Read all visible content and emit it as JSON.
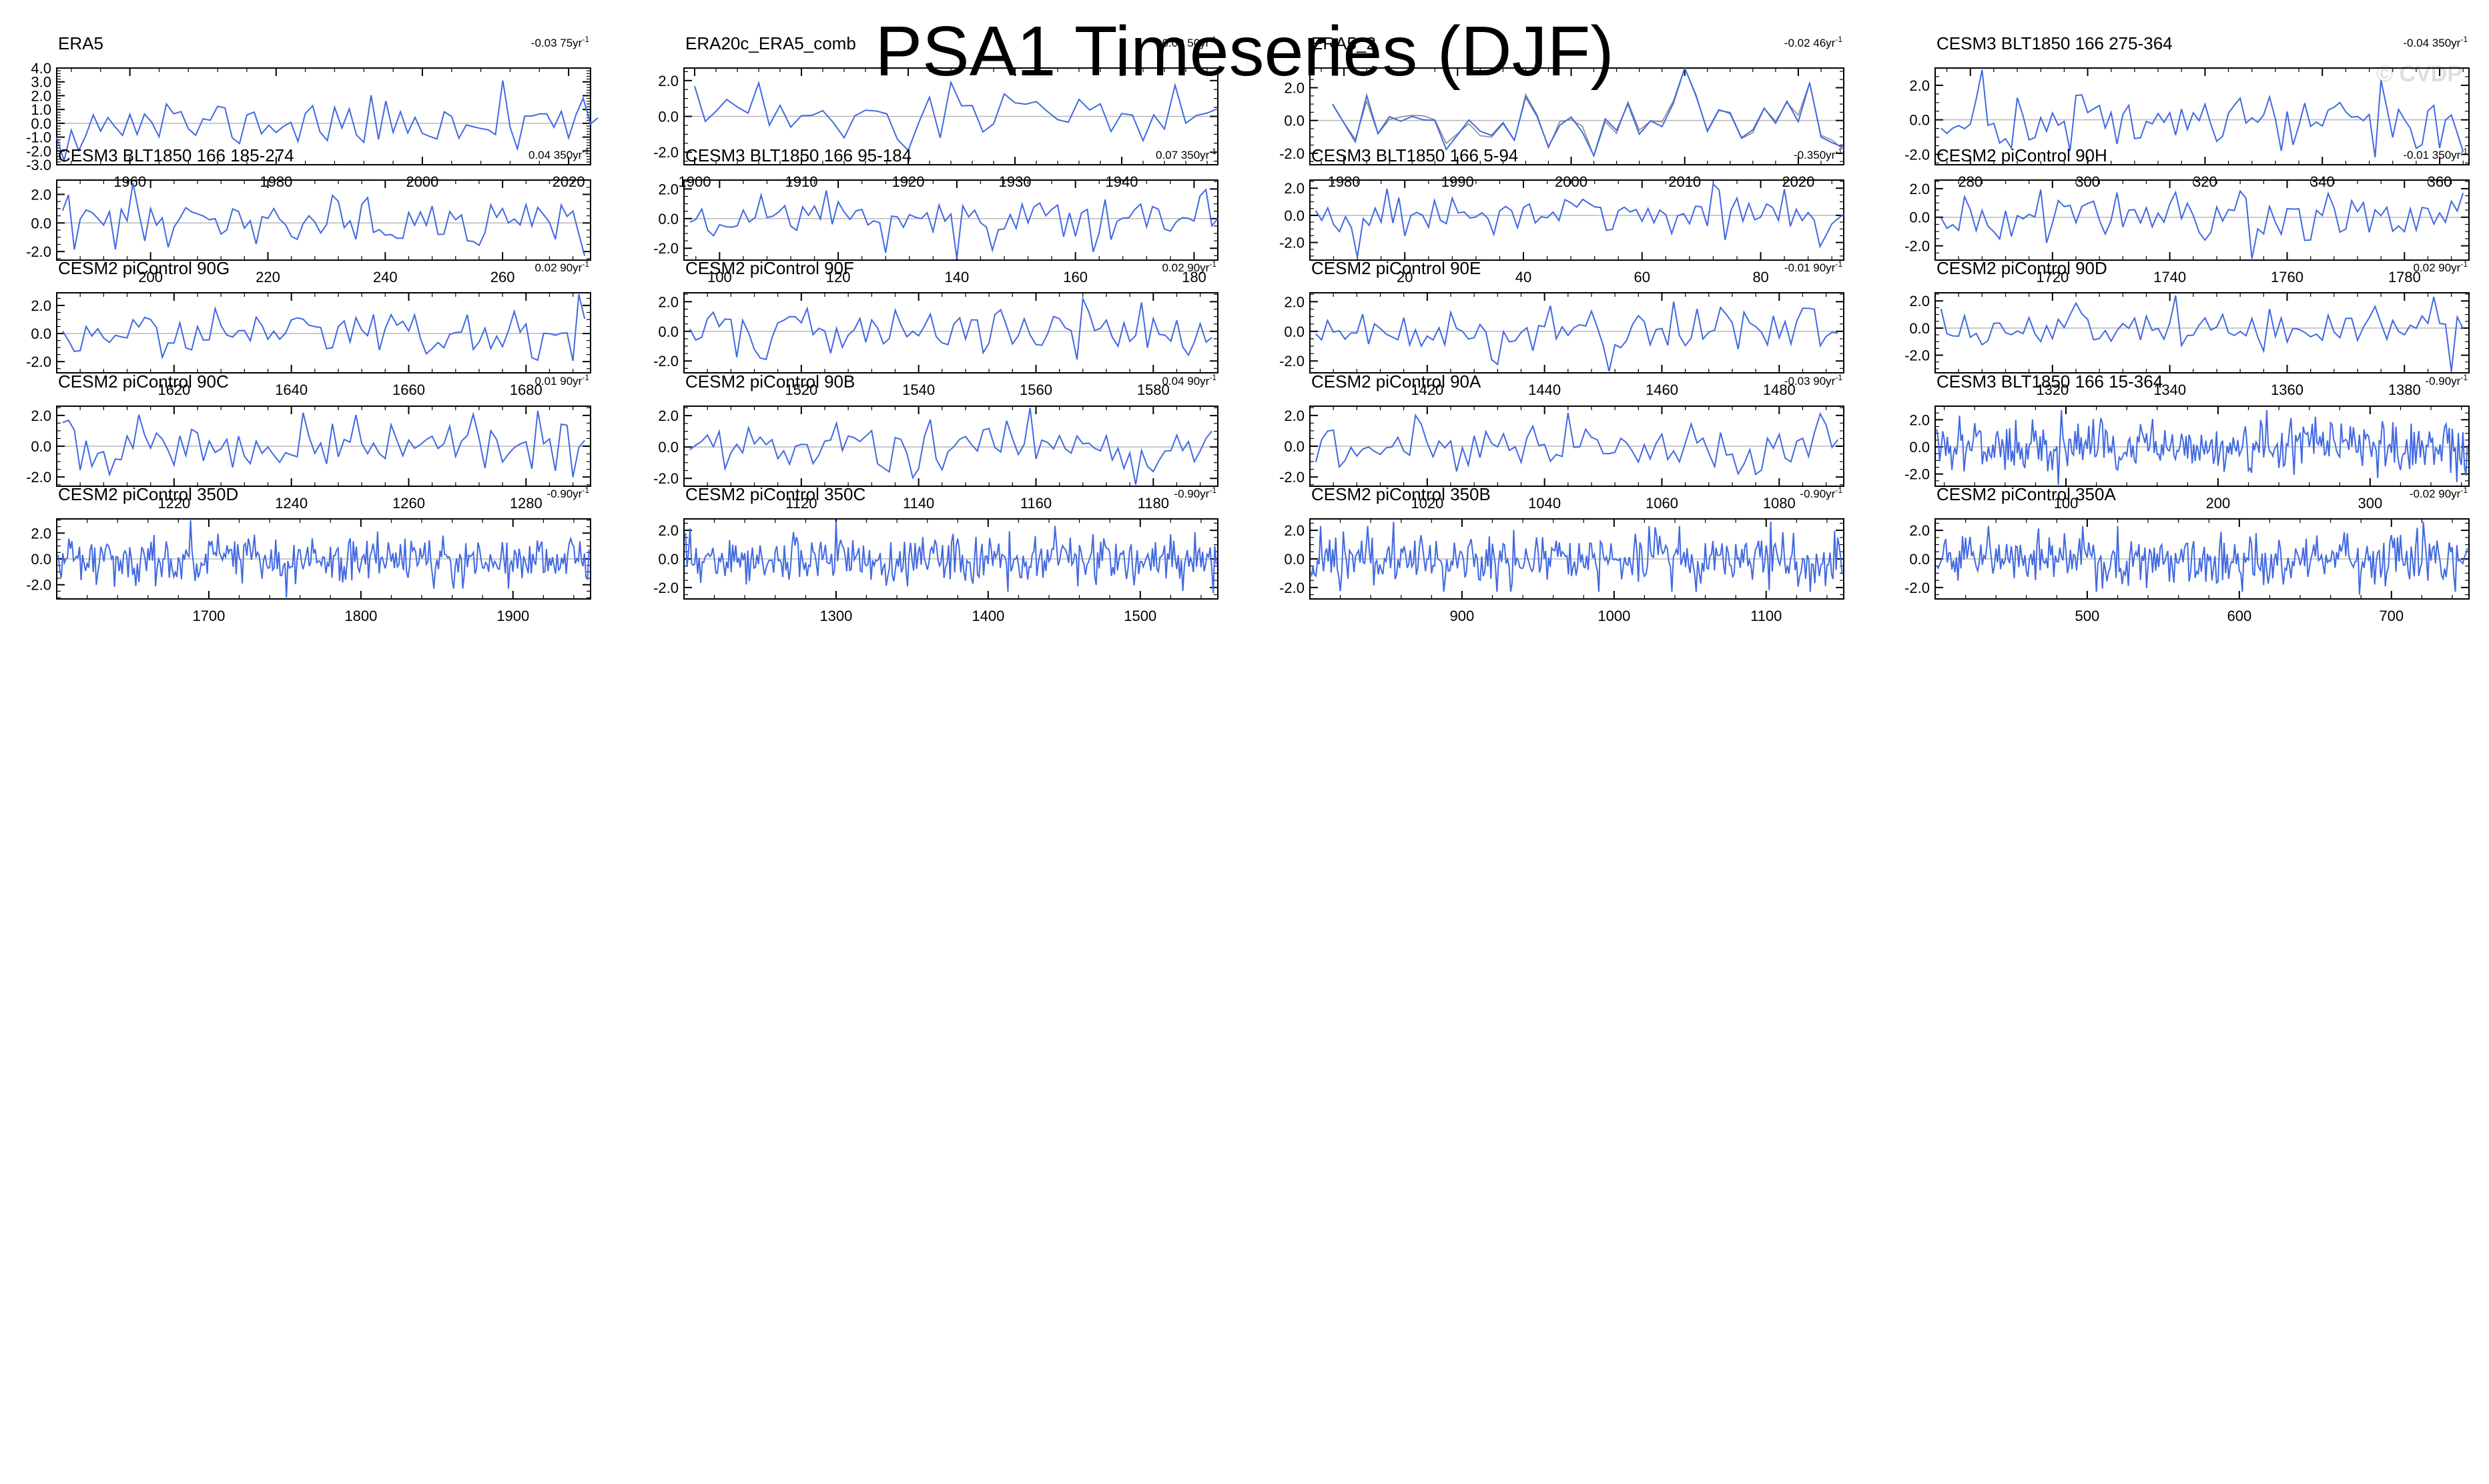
{
  "header": {
    "title": "PSA1 Timeseries (DJF)",
    "watermark": "© CVDP"
  },
  "chart_data": [
    {
      "type": "line",
      "title": "ERA5",
      "trend": "-0.03 75yr",
      "trend_sup": "-1",
      "x_start": 1950,
      "x_end": 2024,
      "xlim": [
        1950,
        2023
      ],
      "xticks": [
        1960,
        1980,
        2000,
        2020
      ],
      "ylim": [
        -3,
        4
      ],
      "yticks": [
        4.0,
        3.0,
        2.0,
        1.0,
        0.0,
        -1.0,
        -2.0,
        -3.0
      ],
      "ytick_labels": [
        "4.0",
        "3.0",
        "2.0",
        "1.0",
        "0.0",
        "-1.0",
        "-2.0",
        "-3.0"
      ],
      "color": "#4169e1",
      "seed": 11,
      "amp": 0.9,
      "peaks": [
        [
          1951,
          -2.7
        ],
        [
          2011,
          3.1
        ]
      ]
    },
    {
      "type": "line",
      "title": "ERA20c_ERA5_comb",
      "trend": "-0.09 50yr",
      "trend_sup": "-1",
      "x_start": 1900,
      "x_end": 1949,
      "xlim": [
        1899,
        1949
      ],
      "xticks": [
        1900,
        1910,
        1920,
        1930,
        1940
      ],
      "ylim": [
        -2.7,
        2.7
      ],
      "yticks": [
        2.0,
        0.0,
        -2.0
      ],
      "ytick_labels": [
        "2.0",
        "0.0",
        "-2.0"
      ],
      "color": "#4169e1",
      "seed": 23,
      "amp": 0.85,
      "peaks": [
        [
          1924,
          1.9
        ],
        [
          1920,
          -1.9
        ]
      ]
    },
    {
      "type": "line",
      "title": "ERA5_2",
      "trend": "-0.02 46yr",
      "trend_sup": "-1",
      "x_start": 1979,
      "x_end": 2024,
      "xlim": [
        1977,
        2024
      ],
      "xticks": [
        1980,
        1990,
        2000,
        2010,
        2020
      ],
      "ylim": [
        -2.7,
        3.2
      ],
      "yticks": [
        2.0,
        0.0,
        -2.0
      ],
      "ytick_labels": [
        "2.0",
        "0.0",
        "-2.0"
      ],
      "color": "#4169e1",
      "overlay_color": "#8a8a8a",
      "seed": 37,
      "amp": 0.85,
      "peaks": [
        [
          2010,
          3.2
        ],
        [
          1998,
          -1.6
        ]
      ]
    },
    {
      "type": "line",
      "title": "CESM3 BLT1850 166 275-364",
      "trend": "-0.04 350yr",
      "trend_sup": "-1",
      "x_start": 275,
      "x_end": 364,
      "xlim": [
        274,
        365
      ],
      "xticks": [
        280,
        300,
        320,
        340,
        360
      ],
      "ylim": [
        -2.6,
        3.0
      ],
      "yticks": [
        2.0,
        0.0,
        -2.0
      ],
      "ytick_labels": [
        "2.0",
        "0.0",
        "-2.0"
      ],
      "color": "#4169e1",
      "seed": 41,
      "amp": 0.85,
      "peaks": [
        [
          282,
          2.9
        ],
        [
          297,
          -1.8
        ]
      ]
    },
    {
      "type": "line",
      "title": "CESM3 BLT1850 166 185-274",
      "trend": "0.04 350yr",
      "trend_sup": "-1",
      "x_start": 185,
      "x_end": 274,
      "xlim": [
        184,
        275
      ],
      "xticks": [
        200,
        220,
        240,
        260
      ],
      "ylim": [
        -2.6,
        3.0
      ],
      "yticks": [
        2.0,
        0.0,
        -2.0
      ],
      "ytick_labels": [
        "2.0",
        "0.0",
        "-2.0"
      ],
      "color": "#4169e1",
      "seed": 53,
      "amp": 0.85,
      "peaks": [
        [
          197,
          2.8
        ],
        [
          203,
          -1.7
        ]
      ]
    },
    {
      "type": "line",
      "title": "CESM3 BLT1850 166 95-184",
      "trend": "0.07 350yr",
      "trend_sup": "-1",
      "x_start": 95,
      "x_end": 184,
      "xlim": [
        94,
        184
      ],
      "xticks": [
        100,
        120,
        140,
        160,
        180
      ],
      "ylim": [
        -2.8,
        2.6
      ],
      "yticks": [
        2.0,
        0.0,
        -2.0
      ],
      "ytick_labels": [
        "2.0",
        "0.0",
        "-2.0"
      ],
      "color": "#4169e1",
      "seed": 61,
      "amp": 0.85,
      "peaks": [
        [
          140,
          -2.7
        ],
        [
          118,
          1.9
        ]
      ]
    },
    {
      "type": "line",
      "title": "CESM3 BLT1850 166 5-94",
      "trend": "-0.350yr",
      "trend_sup": "-1",
      "x_start": 5,
      "x_end": 94,
      "xlim": [
        4,
        94
      ],
      "xticks": [
        20,
        40,
        60,
        80
      ],
      "ylim": [
        -3.3,
        2.6
      ],
      "yticks": [
        2.0,
        0.0,
        -2.0
      ],
      "ytick_labels": [
        "2.0",
        "0.0",
        "-2.0"
      ],
      "color": "#4169e1",
      "seed": 71,
      "amp": 0.85,
      "peaks": [
        [
          12,
          -3.1
        ],
        [
          72,
          2.3
        ]
      ]
    },
    {
      "type": "line",
      "title": "CESM2 piControl 90H",
      "trend": "-0.01 350yr",
      "trend_sup": "-1",
      "x_start": 1701,
      "x_end": 1790,
      "xlim": [
        1700,
        1791
      ],
      "xticks": [
        1720,
        1740,
        1760,
        1780
      ],
      "ylim": [
        -3.0,
        2.6
      ],
      "yticks": [
        2.0,
        0.0,
        -2.0
      ],
      "ytick_labels": [
        "2.0",
        "0.0",
        "-2.0"
      ],
      "color": "#4169e1",
      "seed": 83,
      "amp": 0.85,
      "peaks": [
        [
          1754,
          -2.9
        ],
        [
          1790,
          1.7
        ]
      ]
    },
    {
      "type": "line",
      "title": "CESM2 piControl 90G",
      "trend": "0.02 90yr",
      "trend_sup": "-1",
      "x_start": 1601,
      "x_end": 1690,
      "xlim": [
        1600,
        1691
      ],
      "xticks": [
        1620,
        1640,
        1660,
        1680
      ],
      "ylim": [
        -2.8,
        2.9
      ],
      "yticks": [
        2.0,
        0.0,
        -2.0
      ],
      "ytick_labels": [
        "2.0",
        "0.0",
        "-2.0"
      ],
      "color": "#4169e1",
      "seed": 97,
      "amp": 0.85,
      "peaks": [
        [
          1689,
          2.8
        ],
        [
          1682,
          -1.9
        ]
      ]
    },
    {
      "type": "line",
      "title": "CESM2 piControl 90F",
      "trend": "0.02 90yr",
      "trend_sup": "-1",
      "x_start": 1501,
      "x_end": 1590,
      "xlim": [
        1500,
        1591
      ],
      "xticks": [
        1520,
        1540,
        1560,
        1580
      ],
      "ylim": [
        -2.8,
        2.6
      ],
      "yticks": [
        2.0,
        0.0,
        -2.0
      ],
      "ytick_labels": [
        "2.0",
        "0.0",
        "-2.0"
      ],
      "color": "#4169e1",
      "seed": 101,
      "amp": 0.85,
      "peaks": [
        [
          1568,
          2.2
        ],
        [
          1567,
          -1.9
        ]
      ]
    },
    {
      "type": "line",
      "title": "CESM2 piControl 90E",
      "trend": "-0.01 90yr",
      "trend_sup": "-1",
      "x_start": 1401,
      "x_end": 1490,
      "xlim": [
        1400,
        1491
      ],
      "xticks": [
        1420,
        1440,
        1460,
        1480
      ],
      "ylim": [
        -2.8,
        2.6
      ],
      "yticks": [
        2.0,
        0.0,
        -2.0
      ],
      "ytick_labels": [
        "2.0",
        "0.0",
        "-2.0"
      ],
      "color": "#4169e1",
      "seed": 113,
      "amp": 0.85,
      "peaks": [
        [
          1451,
          -2.7
        ],
        [
          1462,
          2.0
        ]
      ]
    },
    {
      "type": "line",
      "title": "CESM2 piControl 90D",
      "trend": "0.02 90yr",
      "trend_sup": "-1",
      "x_start": 1301,
      "x_end": 1390,
      "xlim": [
        1300,
        1391
      ],
      "xticks": [
        1320,
        1340,
        1360,
        1380
      ],
      "ylim": [
        -3.3,
        2.6
      ],
      "yticks": [
        2.0,
        0.0,
        -2.0
      ],
      "ytick_labels": [
        "2.0",
        "0.0",
        "-2.0"
      ],
      "color": "#4169e1",
      "seed": 127,
      "amp": 0.85,
      "peaks": [
        [
          1388,
          -3.2
        ],
        [
          1341,
          2.4
        ]
      ]
    },
    {
      "type": "line",
      "title": "CESM2 piControl 90C",
      "trend": "0.01 90yr",
      "trend_sup": "-1",
      "x_start": 1201,
      "x_end": 1290,
      "xlim": [
        1200,
        1291
      ],
      "xticks": [
        1220,
        1240,
        1260,
        1280
      ],
      "ylim": [
        -2.6,
        2.6
      ],
      "yticks": [
        2.0,
        0.0,
        -2.0
      ],
      "ytick_labels": [
        "2.0",
        "0.0",
        "-2.0"
      ],
      "color": "#4169e1",
      "seed": 131,
      "amp": 0.85,
      "peaks": [
        [
          1282,
          2.3
        ],
        [
          1288,
          -2.0
        ]
      ]
    },
    {
      "type": "line",
      "title": "CESM2 piControl 90B",
      "trend": "0.04 90yr",
      "trend_sup": "-1",
      "x_start": 1101,
      "x_end": 1190,
      "xlim": [
        1100,
        1191
      ],
      "xticks": [
        1120,
        1140,
        1160,
        1180
      ],
      "ylim": [
        -2.5,
        2.6
      ],
      "yticks": [
        2.0,
        0.0,
        -2.0
      ],
      "ytick_labels": [
        "2.0",
        "0.0",
        "-2.0"
      ],
      "color": "#4169e1",
      "seed": 139,
      "amp": 0.85,
      "peaks": [
        [
          1159,
          2.5
        ],
        [
          1177,
          -2.4
        ]
      ]
    },
    {
      "type": "line",
      "title": "CESM2 piControl 90A",
      "trend": "-0.03 90yr",
      "trend_sup": "-1",
      "x_start": 1001,
      "x_end": 1090,
      "xlim": [
        1000,
        1091
      ],
      "xticks": [
        1020,
        1040,
        1060,
        1080
      ],
      "ylim": [
        -2.6,
        2.6
      ],
      "yticks": [
        2.0,
        0.0,
        -2.0
      ],
      "ytick_labels": [
        "2.0",
        "0.0",
        "-2.0"
      ],
      "color": "#4169e1",
      "seed": 149,
      "amp": 0.85,
      "peaks": [
        [
          1087,
          2.1
        ],
        [
          1073,
          -1.8
        ]
      ]
    },
    {
      "type": "line",
      "title": "CESM3 BLT1850 166 15-364",
      "trend": "-0.90yr",
      "trend_sup": "-1",
      "x_start": 15,
      "x_end": 364,
      "xlim": [
        14,
        365
      ],
      "xticks": [
        100,
        200,
        300
      ],
      "ylim": [
        -2.9,
        3.0
      ],
      "yticks": [
        2.0,
        0.0,
        -2.0
      ],
      "ytick_labels": [
        "2.0",
        "0.0",
        "-2.0"
      ],
      "color": "#4169e1",
      "seed": 157,
      "amp": 0.95,
      "peaks": [
        [
          97,
          2.7
        ],
        [
          232,
          2.7
        ],
        [
          95,
          -2.8
        ],
        [
          357,
          -2.6
        ]
      ]
    },
    {
      "type": "line",
      "title": "CESM2 piControl 350D",
      "trend": "-0.90yr",
      "trend_sup": "-1",
      "x_start": 1601,
      "x_end": 1950,
      "xlim": [
        1600,
        1951
      ],
      "xticks": [
        1700,
        1800,
        1900
      ],
      "ylim": [
        -3.1,
        3.1
      ],
      "yticks": [
        2.0,
        0.0,
        -2.0
      ],
      "ytick_labels": [
        "2.0",
        "0.0",
        "-2.0"
      ],
      "color": "#4169e1",
      "seed": 163,
      "amp": 0.95,
      "peaks": [
        [
          1688,
          3.0
        ],
        [
          1751,
          -3.0
        ]
      ]
    },
    {
      "type": "line",
      "title": "CESM2 piControl 350C",
      "trend": "-0.90yr",
      "trend_sup": "-1",
      "x_start": 1201,
      "x_end": 1550,
      "xlim": [
        1200,
        1551
      ],
      "xticks": [
        1300,
        1400,
        1500
      ],
      "ylim": [
        -2.8,
        2.8
      ],
      "yticks": [
        2.0,
        0.0,
        -2.0
      ],
      "ytick_labels": [
        "2.0",
        "0.0",
        "-2.0"
      ],
      "color": "#4169e1",
      "seed": 173,
      "amp": 0.95,
      "peaks": [
        [
          1300,
          2.6
        ],
        [
          1548,
          -2.4
        ]
      ]
    },
    {
      "type": "line",
      "title": "CESM2 piControl 350B",
      "trend": "-0.90yr",
      "trend_sup": "-1",
      "x_start": 801,
      "x_end": 1150,
      "xlim": [
        800,
        1151
      ],
      "xticks": [
        900,
        1000,
        1100
      ],
      "ylim": [
        -2.8,
        2.8
      ],
      "yticks": [
        2.0,
        0.0,
        -2.0
      ],
      "ytick_labels": [
        "2.0",
        "0.0",
        "-2.0"
      ],
      "color": "#4169e1",
      "seed": 181,
      "amp": 0.95,
      "peaks": [
        [
          855,
          2.6
        ],
        [
          1103,
          2.6
        ],
        [
          932,
          -2.3
        ]
      ]
    },
    {
      "type": "line",
      "title": "CESM2 piControl 350A",
      "trend": "-0.02 90yr",
      "trend_sup": "-1",
      "x_start": 401,
      "x_end": 750,
      "xlim": [
        400,
        751
      ],
      "xticks": [
        500,
        600,
        700
      ],
      "ylim": [
        -2.8,
        2.8
      ],
      "yticks": [
        2.0,
        0.0,
        -2.0
      ],
      "ytick_labels": [
        "2.0",
        "0.0",
        "-2.0"
      ],
      "color": "#4169e1",
      "seed": 191,
      "amp": 0.95,
      "peaks": [
        [
          721,
          2.6
        ],
        [
          679,
          -2.5
        ]
      ]
    }
  ]
}
